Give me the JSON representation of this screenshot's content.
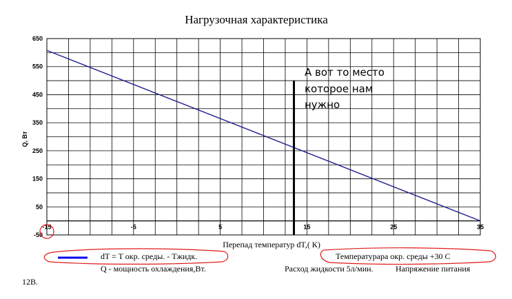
{
  "chart_data": {
    "type": "line",
    "title": "Нагрузочная характеристика",
    "xlabel": "Перепад температур dT,( К)",
    "ylabel": "Q, Вт",
    "xlim": [
      -15,
      35
    ],
    "ylim": [
      -50,
      650
    ],
    "x_ticks": [
      "-15",
      "-5",
      "5",
      "15",
      "25",
      "35"
    ],
    "y_ticks": [
      "650",
      "550",
      "450",
      "350",
      "250",
      "150",
      "50",
      "-50"
    ],
    "x_minor_step": 2.5,
    "y_minor_step": 50,
    "grid": true,
    "series": [
      {
        "color": "#1c1c8c",
        "points": [
          [
            -15,
            608
          ],
          [
            35,
            0
          ]
        ]
      }
    ],
    "marker": {
      "x": 13.5,
      "y_range": [
        -50,
        500
      ],
      "color": "#000000"
    },
    "annotation": [
      "А вот то место",
      "которое нам",
      "нужно"
    ]
  },
  "legend": {
    "line1": "dT = T окр. среды. - Тжидк.",
    "line2": "Q - мощность охлаждения,Вт.",
    "line3": "12В.",
    "ambient": "Температурара окр. среды +30 С",
    "flow": "Расход жидкости 5л/мин.",
    "voltage": "Напряжение питания",
    "line_color": "#0000ee",
    "highlight_color": "#e01818"
  }
}
